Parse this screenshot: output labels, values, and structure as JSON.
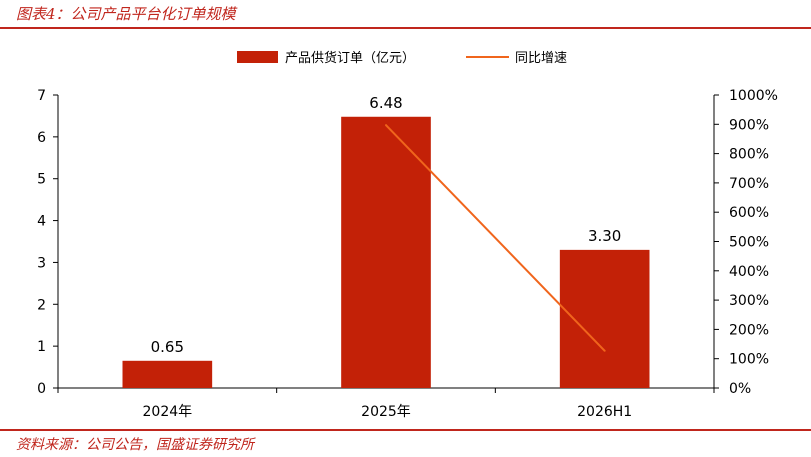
{
  "figure": {
    "title": "图表4：公司产品平台化订单规模",
    "source": "资料来源：公司公告，国盛证券研究所"
  },
  "chart_data": {
    "type": "bar",
    "categories": [
      "2024年",
      "2025年",
      "2026H1"
    ],
    "series": [
      {
        "name": "产品供货订单（亿元）",
        "type": "bar",
        "axis": "left",
        "color": "#c32107",
        "values": [
          0.65,
          6.48,
          3.3
        ],
        "labels": [
          "0.65",
          "6.48",
          "3.30"
        ]
      },
      {
        "name": "同比增速",
        "type": "line",
        "axis": "right",
        "color": "#f0651c",
        "values": [
          null,
          897,
          127
        ]
      }
    ],
    "ylim": [
      0,
      7
    ],
    "yticks": [
      "0",
      "1",
      "2",
      "3",
      "4",
      "5",
      "6",
      "7"
    ],
    "y2lim": [
      0,
      1000
    ],
    "y2ticks": [
      "0%",
      "100%",
      "200%",
      "300%",
      "400%",
      "500%",
      "600%",
      "700%",
      "800%",
      "900%",
      "1000%"
    ],
    "legend": "top-center",
    "grid": false
  }
}
